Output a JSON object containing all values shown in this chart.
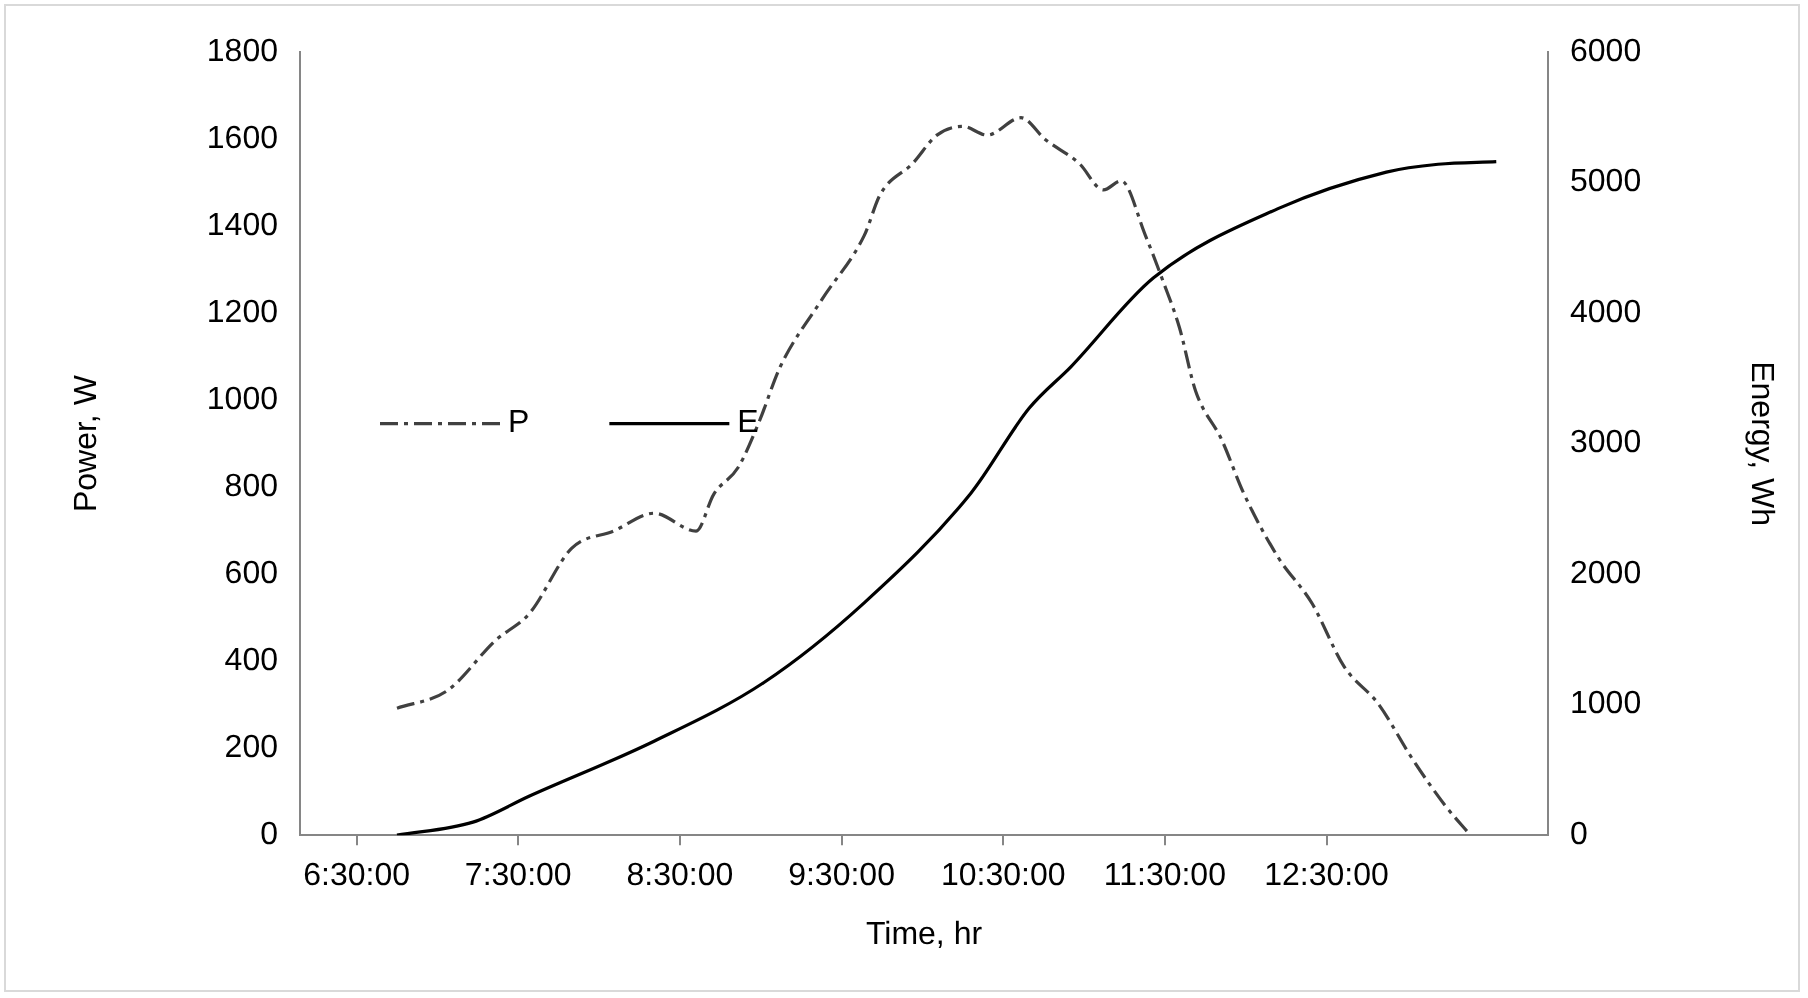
{
  "chart_data": {
    "type": "line",
    "xlabel": "Time, hr",
    "ylabel": "Power, W",
    "y2label": "Energy, Wh",
    "xlim": [
      6.15,
      13.87
    ],
    "xticks": [
      {
        "value": 6.5,
        "label": "6:30:00"
      },
      {
        "value": 7.5,
        "label": "7:30:00"
      },
      {
        "value": 8.5,
        "label": "8:30:00"
      },
      {
        "value": 9.5,
        "label": "9:30:00"
      },
      {
        "value": 10.5,
        "label": "10:30:00"
      },
      {
        "value": 11.5,
        "label": "11:30:00"
      },
      {
        "value": 12.5,
        "label": "12:30:00"
      }
    ],
    "ylim": [
      0,
      1800
    ],
    "yticks": [
      0,
      200,
      400,
      600,
      800,
      1000,
      1200,
      1400,
      1600,
      1800
    ],
    "y2lim": [
      0,
      6000
    ],
    "y2ticks": [
      0,
      1000,
      2000,
      3000,
      4000,
      5000,
      6000
    ],
    "grid": false,
    "legend": "left",
    "marker": "none",
    "series": [
      {
        "name": "P",
        "color": "#404040",
        "line_style": "dashed",
        "axis": "y",
        "x": [
          6.75,
          7.06,
          7.36,
          7.57,
          7.83,
          8.09,
          8.34,
          8.6,
          8.71,
          8.86,
          8.99,
          9.12,
          9.38,
          9.64,
          9.74,
          9.94,
          10.09,
          10.25,
          10.4,
          10.61,
          10.76,
          10.97,
          11.12,
          11.23,
          11.38,
          11.49,
          11.59,
          11.69,
          11.85,
          11.99,
          12.2,
          12.41,
          12.61,
          12.82,
          13.03,
          13.23,
          13.39
        ],
        "values": [
          292,
          332,
          448,
          510,
          659,
          699,
          740,
          699,
          784,
          845,
          950,
          1076,
          1232,
          1378,
          1473,
          1544,
          1609,
          1629,
          1609,
          1649,
          1599,
          1544,
          1483,
          1504,
          1378,
          1272,
          1167,
          1021,
          910,
          784,
          639,
          533,
          387,
          302,
          176,
          70,
          0
        ]
      },
      {
        "name": "E",
        "color": "#000000",
        "line_style": "solid",
        "axis": "y2",
        "x": [
          6.75,
          7.22,
          7.57,
          8.34,
          9.02,
          9.64,
          10.3,
          10.66,
          10.92,
          11.43,
          12.2,
          12.87,
          13.19,
          13.55
        ],
        "values": [
          0,
          100,
          300,
          720,
          1170,
          1780,
          2620,
          3270,
          3590,
          4270,
          4800,
          5080,
          5140,
          5160
        ]
      }
    ]
  }
}
